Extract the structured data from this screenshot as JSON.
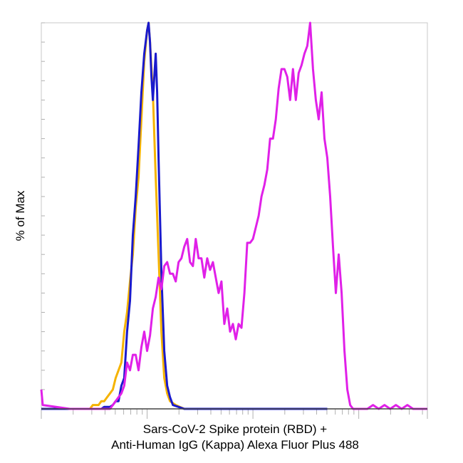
{
  "chart_data": {
    "type": "line",
    "title": "",
    "xlabel_line1": "Sars-CoV-2 Spike protein (RBD) +",
    "xlabel_line2": "Anti-Human IgG (Kappa) Alexa Fluor Plus 488",
    "ylabel": "% of Max",
    "xscale": "log",
    "xlim": [
      0,
      1
    ],
    "ylim": [
      0,
      100
    ],
    "grid": false,
    "series": [
      {
        "color": "#f5b300",
        "points": [
          [
            0.0,
            0
          ],
          [
            0.17,
            0
          ],
          [
            0.18,
            1
          ],
          [
            0.2,
            1
          ],
          [
            0.21,
            2
          ],
          [
            0.22,
            2
          ],
          [
            0.23,
            3
          ],
          [
            0.24,
            4
          ],
          [
            0.25,
            5
          ],
          [
            0.26,
            8
          ],
          [
            0.27,
            10
          ],
          [
            0.28,
            12
          ],
          [
            0.29,
            20
          ],
          [
            0.3,
            25
          ],
          [
            0.31,
            33
          ],
          [
            0.32,
            40
          ],
          [
            0.33,
            52
          ],
          [
            0.34,
            60
          ],
          [
            0.35,
            75
          ],
          [
            0.36,
            90
          ],
          [
            0.37,
            98
          ],
          [
            0.375,
            100
          ],
          [
            0.38,
            95
          ],
          [
            0.39,
            82
          ],
          [
            0.4,
            60
          ],
          [
            0.41,
            40
          ],
          [
            0.42,
            20
          ],
          [
            0.43,
            8
          ],
          [
            0.44,
            4
          ],
          [
            0.45,
            2
          ],
          [
            0.47,
            1
          ],
          [
            0.5,
            0
          ],
          [
            1.0,
            0
          ]
        ]
      },
      {
        "color": "#1a1acc",
        "points": [
          [
            0.0,
            0
          ],
          [
            0.21,
            0
          ],
          [
            0.22,
            0.5
          ],
          [
            0.24,
            0.5
          ],
          [
            0.25,
            1
          ],
          [
            0.26,
            2
          ],
          [
            0.27,
            2
          ],
          [
            0.28,
            6
          ],
          [
            0.29,
            8
          ],
          [
            0.3,
            20
          ],
          [
            0.31,
            28
          ],
          [
            0.32,
            45
          ],
          [
            0.33,
            55
          ],
          [
            0.34,
            68
          ],
          [
            0.35,
            82
          ],
          [
            0.36,
            92
          ],
          [
            0.37,
            98
          ],
          [
            0.375,
            100
          ],
          [
            0.38,
            95
          ],
          [
            0.385,
            86
          ],
          [
            0.39,
            80
          ],
          [
            0.4,
            92
          ],
          [
            0.405,
            82
          ],
          [
            0.41,
            65
          ],
          [
            0.42,
            35
          ],
          [
            0.43,
            15
          ],
          [
            0.44,
            6
          ],
          [
            0.45,
            3
          ],
          [
            0.46,
            1
          ],
          [
            0.48,
            0.5
          ],
          [
            0.5,
            0
          ],
          [
            1.0,
            0
          ]
        ]
      },
      {
        "color": "#e020e8",
        "points": [
          [
            0.0,
            5
          ],
          [
            0.005,
            1
          ],
          [
            0.1,
            0
          ],
          [
            0.24,
            0
          ],
          [
            0.27,
            3
          ],
          [
            0.28,
            4
          ],
          [
            0.29,
            6
          ],
          [
            0.3,
            12
          ],
          [
            0.31,
            10
          ],
          [
            0.32,
            14
          ],
          [
            0.33,
            14
          ],
          [
            0.34,
            10
          ],
          [
            0.35,
            16
          ],
          [
            0.36,
            20
          ],
          [
            0.37,
            15
          ],
          [
            0.38,
            19
          ],
          [
            0.39,
            26
          ],
          [
            0.4,
            29
          ],
          [
            0.41,
            34
          ],
          [
            0.42,
            31
          ],
          [
            0.43,
            37
          ],
          [
            0.44,
            38
          ],
          [
            0.45,
            35
          ],
          [
            0.46,
            35
          ],
          [
            0.47,
            33
          ],
          [
            0.48,
            38
          ],
          [
            0.49,
            39
          ],
          [
            0.5,
            42
          ],
          [
            0.51,
            44
          ],
          [
            0.52,
            38
          ],
          [
            0.53,
            37
          ],
          [
            0.54,
            44
          ],
          [
            0.55,
            39
          ],
          [
            0.56,
            39
          ],
          [
            0.57,
            34
          ],
          [
            0.58,
            39
          ],
          [
            0.59,
            36
          ],
          [
            0.6,
            38
          ],
          [
            0.61,
            34
          ],
          [
            0.62,
            30
          ],
          [
            0.63,
            33
          ],
          [
            0.64,
            22
          ],
          [
            0.65,
            26
          ],
          [
            0.66,
            20
          ],
          [
            0.67,
            22
          ],
          [
            0.68,
            18
          ],
          [
            0.69,
            22
          ],
          [
            0.7,
            21
          ],
          [
            0.71,
            30
          ],
          [
            0.72,
            43
          ],
          [
            0.73,
            43
          ],
          [
            0.74,
            44
          ],
          [
            0.75,
            47
          ],
          [
            0.76,
            50
          ],
          [
            0.77,
            55
          ],
          [
            0.78,
            58
          ],
          [
            0.79,
            62
          ],
          [
            0.8,
            70
          ],
          [
            0.81,
            70
          ],
          [
            0.82,
            75
          ],
          [
            0.83,
            83
          ],
          [
            0.84,
            88
          ],
          [
            0.85,
            88
          ],
          [
            0.86,
            86
          ],
          [
            0.87,
            80
          ],
          [
            0.88,
            88
          ],
          [
            0.89,
            80
          ],
          [
            0.9,
            87
          ],
          [
            0.91,
            89
          ],
          [
            0.92,
            92
          ],
          [
            0.93,
            94
          ],
          [
            0.94,
            100
          ],
          [
            0.95,
            88
          ],
          [
            0.96,
            80
          ],
          [
            0.97,
            75
          ],
          [
            0.98,
            82
          ],
          [
            0.99,
            70
          ],
          [
            1.0,
            65
          ],
          [
            1.01,
            55
          ],
          [
            1.02,
            42
          ],
          [
            1.03,
            30
          ],
          [
            1.04,
            40
          ],
          [
            1.05,
            30
          ],
          [
            1.06,
            15
          ],
          [
            1.07,
            5
          ],
          [
            1.08,
            1
          ],
          [
            1.09,
            0
          ],
          [
            1.1,
            0
          ],
          [
            1.14,
            0
          ],
          [
            1.16,
            1
          ],
          [
            1.18,
            0
          ],
          [
            1.2,
            1
          ],
          [
            1.22,
            0
          ],
          [
            1.24,
            1
          ],
          [
            1.26,
            0
          ],
          [
            1.28,
            1
          ],
          [
            1.3,
            0
          ],
          [
            1.35,
            0
          ]
        ]
      }
    ]
  }
}
